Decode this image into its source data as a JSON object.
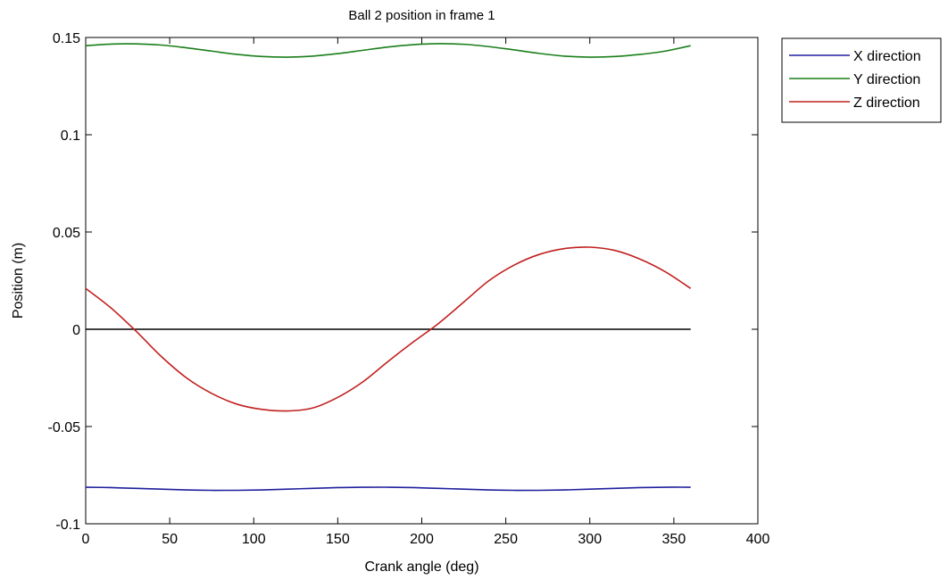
{
  "chart_data": {
    "type": "line",
    "title": "Ball 2 position in frame 1",
    "xlabel": "Crank angle (deg)",
    "ylabel": "Position (m)",
    "xlim": [
      0,
      400
    ],
    "ylim": [
      -0.1,
      0.15
    ],
    "xticks": [
      0,
      50,
      100,
      150,
      200,
      250,
      300,
      350,
      400
    ],
    "xtick_labels": [
      "0",
      "50",
      "100",
      "150",
      "200",
      "250",
      "300",
      "350",
      "400"
    ],
    "yticks": [
      -0.1,
      -0.05,
      0,
      0.05,
      0.1,
      0.15
    ],
    "ytick_labels": [
      "-0.1",
      "-0.05",
      "0",
      "0.05",
      "0.1",
      "0.15"
    ],
    "grid": false,
    "legend_position": "outside-top-right",
    "reference_line": {
      "y": 0,
      "x_range": [
        0,
        360
      ],
      "color": "#000000"
    },
    "x": [
      0,
      15,
      30,
      45,
      60,
      75,
      90,
      105,
      120,
      135,
      150,
      165,
      180,
      195,
      210,
      225,
      240,
      255,
      270,
      285,
      300,
      315,
      330,
      345,
      360
    ],
    "series": [
      {
        "name": "X direction",
        "color": "#1f1f9e",
        "values": [
          -0.0812,
          -0.0814,
          -0.0818,
          -0.0822,
          -0.0826,
          -0.0828,
          -0.0828,
          -0.0826,
          -0.0822,
          -0.0818,
          -0.0814,
          -0.0812,
          -0.0812,
          -0.0814,
          -0.0818,
          -0.0822,
          -0.0826,
          -0.0828,
          -0.0828,
          -0.0826,
          -0.0822,
          -0.0818,
          -0.0814,
          -0.0812,
          -0.0812
        ]
      },
      {
        "name": "Y direction",
        "color": "#1a7f1a",
        "values": [
          0.1458,
          0.1466,
          0.1467,
          0.1461,
          0.1447,
          0.143,
          0.1413,
          0.1402,
          0.1399,
          0.1404,
          0.1417,
          0.1434,
          0.1451,
          0.1463,
          0.1468,
          0.1465,
          0.1453,
          0.1436,
          0.1418,
          0.1404,
          0.1399,
          0.1402,
          0.1413,
          0.143,
          0.1458
        ]
      },
      {
        "name": "Z direction",
        "color": "#c0201f",
        "values": [
          0.021,
          0.011,
          -0.001,
          -0.014,
          -0.025,
          -0.033,
          -0.0385,
          -0.0412,
          -0.042,
          -0.0405,
          -0.035,
          -0.027,
          -0.0165,
          -0.0065,
          0.003,
          0.014,
          0.025,
          0.033,
          0.0385,
          0.0415,
          0.0422,
          0.0405,
          0.036,
          0.0295,
          0.021
        ]
      }
    ]
  }
}
